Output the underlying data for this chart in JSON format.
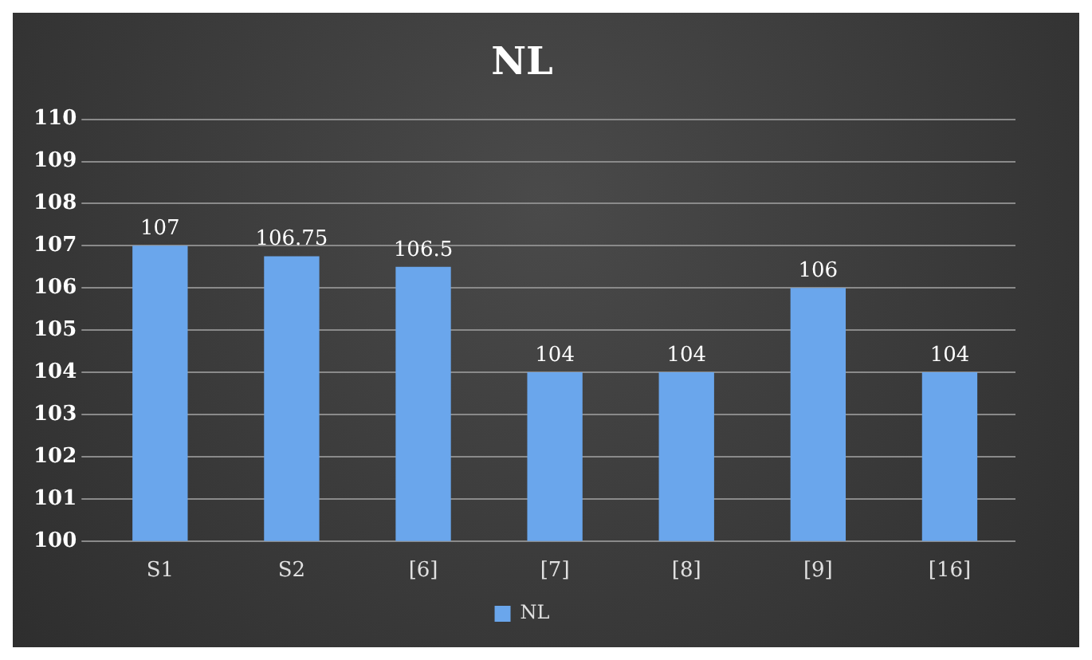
{
  "chart_data": {
    "type": "bar",
    "title": "NL",
    "categories": [
      "S1",
      "S2",
      "[6]",
      "[7]",
      "[8]",
      "[9]",
      "[16]"
    ],
    "series": [
      {
        "name": "NL",
        "color": "#6aa6ec",
        "values": [
          107,
          106.75,
          106.5,
          104,
          104,
          106,
          104
        ]
      }
    ],
    "ylim": [
      100,
      110
    ],
    "yticks": [
      100,
      101,
      102,
      103,
      104,
      105,
      106,
      107,
      108,
      109,
      110
    ],
    "grid": "y",
    "legend": "bottom",
    "data_labels": true
  }
}
